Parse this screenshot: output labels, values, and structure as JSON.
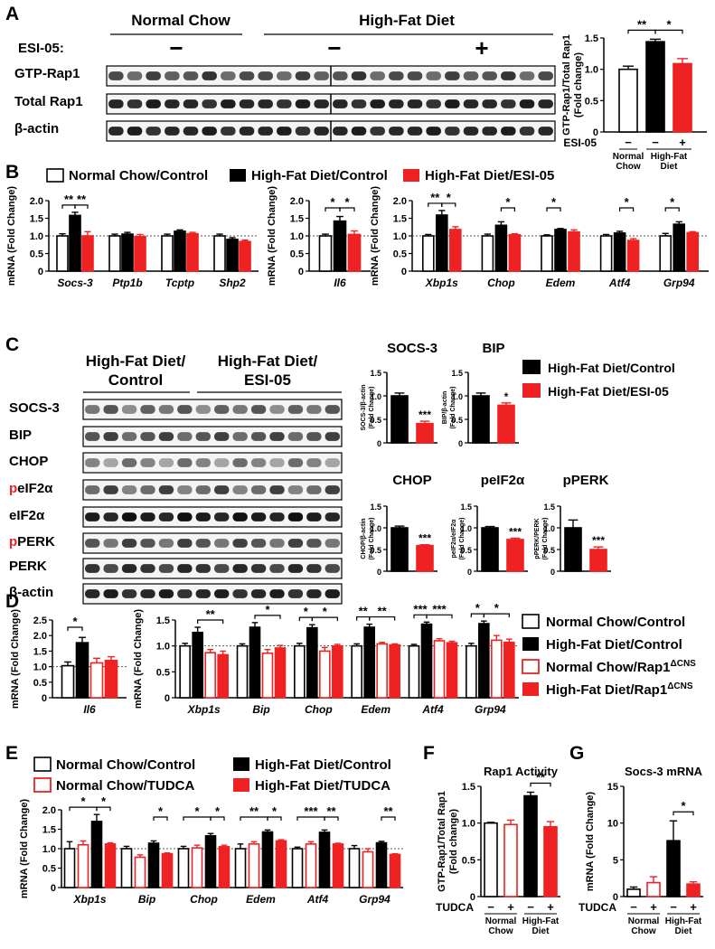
{
  "panel_labels": [
    "A",
    "B",
    "C",
    "D",
    "E",
    "F",
    "G"
  ],
  "colors": {
    "normal": "#ffffff",
    "hfd": "#000000",
    "treat": "#ee2222",
    "outline_red": "#ee2222"
  },
  "panel_a": {
    "header_nc": "Normal Chow",
    "header_hfd": "High-Fat Diet",
    "esi_label": "ESI-05:",
    "esi_signs": [
      "−",
      "−",
      "+"
    ],
    "blots": [
      "GTP-Rap1",
      "Total Rap1",
      "β-actin"
    ]
  },
  "panel_c": {
    "header_1a": "High-Fat Diet/",
    "header_1b": "Control",
    "header_2a": "High-Fat Diet/",
    "header_2b": "ESI-05",
    "blots": [
      "SOCS-3",
      "BIP",
      "CHOP",
      "peIF2α",
      "eIF2α",
      "pPERK",
      "PERK",
      "β-actin"
    ],
    "legend": [
      "High-Fat Diet/Control",
      "High-Fat Diet/ESI-05"
    ]
  },
  "legend_b": [
    "Normal Chow/Control",
    "High-Fat Diet/Control",
    "High-Fat Diet/ESI-05"
  ],
  "legend_d": [
    "Normal Chow/Control",
    "High-Fat Diet/Control",
    "Normal Chow/Rap1ΔCNS",
    "High-Fat Diet/Rap1ΔCNS"
  ],
  "legend_e": [
    "Normal Chow/Control",
    "High-Fat Diet/Control",
    "Normal Chow/TUDCA",
    "High-Fat Diet/TUDCA"
  ],
  "chart_data": [
    {
      "id": "A",
      "type": "bar",
      "ylabel": "GTP-Rap1/Total Rap1 (Fold change)",
      "ylim": [
        0,
        1.5
      ],
      "yticks": [
        0,
        0.5,
        1.0,
        1.5
      ],
      "treatment_label": "ESI-05",
      "treatment_signs": [
        "−",
        "−",
        "+"
      ],
      "group_labels": [
        "Normal Chow",
        "High-Fat Diet"
      ],
      "values": [
        1.0,
        1.44,
        1.09
      ],
      "errors": [
        0.05,
        0.04,
        0.08
      ],
      "fills": [
        "white",
        "black",
        "red"
      ],
      "sig": [
        {
          "from": 0,
          "to": 1,
          "label": "**"
        },
        {
          "from": 1,
          "to": 2,
          "label": "*"
        }
      ]
    },
    {
      "id": "B1",
      "type": "bar",
      "ylabel": "mRNA (Fold Change)",
      "ylim": [
        0,
        2.0
      ],
      "yticks": [
        0,
        0.5,
        1.0,
        1.5,
        2.0
      ],
      "categories": [
        "Socs-3",
        "Ptp1b",
        "Tcptp",
        "Shp2"
      ],
      "series": [
        {
          "name": "Normal Chow/Control",
          "values": [
            1.0,
            1.0,
            1.0,
            1.0
          ],
          "errors": [
            0.06,
            0.05,
            0.05,
            0.05
          ]
        },
        {
          "name": "High-Fat Diet/Control",
          "values": [
            1.58,
            1.05,
            1.13,
            0.9
          ],
          "errors": [
            0.09,
            0.05,
            0.04,
            0.05
          ]
        },
        {
          "name": "High-Fat Diet/ESI-05",
          "values": [
            1.0,
            0.98,
            1.06,
            0.84
          ],
          "errors": [
            0.12,
            0.06,
            0.04,
            0.04
          ]
        }
      ],
      "sig": [
        {
          "cat": 0,
          "from": 0,
          "to": 1,
          "label": "**"
        },
        {
          "cat": 0,
          "from": 1,
          "to": 2,
          "label": "**"
        }
      ]
    },
    {
      "id": "B2",
      "type": "bar",
      "ylabel": "mRNA (Fold Change)",
      "ylim": [
        0,
        2.0
      ],
      "yticks": [
        0,
        0.5,
        1.0,
        1.5,
        2.0
      ],
      "categories": [
        "Il6"
      ],
      "series": [
        {
          "name": "Normal Chow/Control",
          "values": [
            1.0
          ],
          "errors": [
            0.05
          ]
        },
        {
          "name": "High-Fat Diet/Control",
          "values": [
            1.42
          ],
          "errors": [
            0.13
          ]
        },
        {
          "name": "High-Fat Diet/ESI-05",
          "values": [
            1.04
          ],
          "errors": [
            0.1
          ]
        }
      ],
      "sig": [
        {
          "cat": 0,
          "from": 0,
          "to": 1,
          "label": "*"
        },
        {
          "cat": 0,
          "from": 1,
          "to": 2,
          "label": "*"
        }
      ]
    },
    {
      "id": "B3",
      "type": "bar",
      "ylabel": "mRNA (Fold Change)",
      "ylim": [
        0,
        2.0
      ],
      "yticks": [
        0,
        0.5,
        1.0,
        1.5,
        2.0
      ],
      "categories": [
        "Xbp1s",
        "Chop",
        "Edem",
        "Atf4",
        "Grp94"
      ],
      "series": [
        {
          "name": "Normal Chow/Control",
          "values": [
            1.0,
            1.0,
            1.0,
            1.0,
            1.0
          ],
          "errors": [
            0.04,
            0.05,
            0.03,
            0.04,
            0.07
          ]
        },
        {
          "name": "High-Fat Diet/Control",
          "values": [
            1.59,
            1.3,
            1.18,
            1.08,
            1.33
          ],
          "errors": [
            0.13,
            0.1,
            0.03,
            0.05,
            0.07
          ]
        },
        {
          "name": "High-Fat Diet/ESI-05",
          "values": [
            1.18,
            1.03,
            1.11,
            0.87,
            1.09
          ],
          "errors": [
            0.08,
            0.03,
            0.06,
            0.05,
            0.03
          ]
        }
      ],
      "sig": [
        {
          "cat": 0,
          "from": 0,
          "to": 1,
          "label": "**"
        },
        {
          "cat": 0,
          "from": 1,
          "to": 2,
          "label": "*"
        },
        {
          "cat": 1,
          "from": 1,
          "to": 2,
          "label": "*"
        },
        {
          "cat": 2,
          "from": 0,
          "to": 1,
          "label": "*"
        },
        {
          "cat": 3,
          "from": 1,
          "to": 2,
          "label": "*"
        },
        {
          "cat": 4,
          "from": 0,
          "to": 1,
          "label": "*"
        }
      ]
    },
    {
      "id": "C_SOCS3",
      "type": "bar",
      "title": "SOCS-3",
      "ylabel": "SOCS-3/β-actin (Fold Change)",
      "ylim": [
        0,
        1.5
      ],
      "yticks": [
        0,
        0.5,
        1.0,
        1.5
      ],
      "categories": [
        "High-Fat Diet/Control",
        "High-Fat Diet/ESI-05"
      ],
      "values": [
        1.0,
        0.41
      ],
      "errors": [
        0.06,
        0.05
      ],
      "sig": [
        {
          "bar": 1,
          "label": "***"
        }
      ]
    },
    {
      "id": "C_BIP",
      "type": "bar",
      "title": "BIP",
      "ylabel": "BIP/β-actin (Fold Change)",
      "ylim": [
        0,
        1.5
      ],
      "yticks": [
        0,
        0.5,
        1.0,
        1.5
      ],
      "categories": [
        "High-Fat Diet/Control",
        "High-Fat Diet/ESI-05"
      ],
      "values": [
        1.0,
        0.8
      ],
      "errors": [
        0.06,
        0.05
      ],
      "sig": [
        {
          "bar": 1,
          "label": "*"
        }
      ]
    },
    {
      "id": "C_CHOP",
      "type": "bar",
      "title": "CHOP",
      "ylabel": "CHOP/β-actin (Fold Change)",
      "ylim": [
        0,
        1.5
      ],
      "yticks": [
        0,
        0.5,
        1.0,
        1.5
      ],
      "categories": [
        "High-Fat Diet/Control",
        "High-Fat Diet/ESI-05"
      ],
      "values": [
        1.0,
        0.59
      ],
      "errors": [
        0.04,
        0.02
      ],
      "sig": [
        {
          "bar": 1,
          "label": "***"
        }
      ]
    },
    {
      "id": "C_peIF2a",
      "type": "bar",
      "title": "peIF2α",
      "ylabel": "peIF2α/eIF2α (Fold Change)",
      "ylim": [
        0,
        1.5
      ],
      "yticks": [
        0,
        0.5,
        1.0,
        1.5
      ],
      "categories": [
        "High-Fat Diet/Control",
        "High-Fat Diet/ESI-05"
      ],
      "values": [
        1.0,
        0.73
      ],
      "errors": [
        0.03,
        0.03
      ],
      "sig": [
        {
          "bar": 1,
          "label": "***"
        }
      ]
    },
    {
      "id": "C_pPERK",
      "type": "bar",
      "title": "pPERK",
      "ylabel": "pPERK/PERK (Fold Change)",
      "ylim": [
        0,
        1.5
      ],
      "yticks": [
        0,
        0.5,
        1.0,
        1.5
      ],
      "categories": [
        "High-Fat Diet/Control",
        "High-Fat Diet/ESI-05"
      ],
      "values": [
        1.0,
        0.5
      ],
      "errors": [
        0.18,
        0.06
      ],
      "sig": [
        {
          "bar": 1,
          "label": "***"
        }
      ]
    },
    {
      "id": "D1",
      "type": "bar",
      "ylabel": "mRNA (Fold Change)",
      "ylim": [
        0,
        2.5
      ],
      "yticks": [
        0,
        0.5,
        1.0,
        1.5,
        2.0,
        2.5
      ],
      "categories": [
        "Il6"
      ],
      "series": [
        {
          "name": "Normal Chow/Control",
          "values": [
            1.03
          ],
          "errors": [
            0.12
          ]
        },
        {
          "name": "High-Fat Diet/Control",
          "values": [
            1.77
          ],
          "errors": [
            0.17
          ]
        },
        {
          "name": "Normal Chow/Rap1ΔCNS",
          "values": [
            1.12
          ],
          "errors": [
            0.15
          ]
        },
        {
          "name": "High-Fat Diet/Rap1ΔCNS",
          "values": [
            1.2
          ],
          "errors": [
            0.12
          ]
        }
      ],
      "sig": [
        {
          "cat": 0,
          "from": 0,
          "to": 1,
          "label": "*"
        }
      ]
    },
    {
      "id": "D2",
      "type": "bar",
      "ylabel": "mRNA (Fold Change)",
      "ylim": [
        0,
        1.5
      ],
      "yticks": [
        0,
        0.5,
        1.0,
        1.5
      ],
      "categories": [
        "Xbp1s",
        "Bip",
        "Chop",
        "Edem",
        "Atf4",
        "Grp94"
      ],
      "series": [
        {
          "name": "Normal Chow/Control",
          "values": [
            1.0,
            1.0,
            1.0,
            1.0,
            1.0,
            1.0
          ],
          "errors": [
            0.05,
            0.04,
            0.05,
            0.04,
            0.03,
            0.05
          ]
        },
        {
          "name": "High-Fat Diet/Control",
          "values": [
            1.26,
            1.36,
            1.35,
            1.36,
            1.42,
            1.43
          ],
          "errors": [
            0.1,
            0.09,
            0.06,
            0.06,
            0.04,
            0.05
          ]
        },
        {
          "name": "Normal Chow/Rap1ΔCNS",
          "values": [
            0.87,
            0.86,
            0.9,
            1.04,
            1.1,
            1.11
          ],
          "errors": [
            0.06,
            0.07,
            0.07,
            0.03,
            0.04,
            0.09
          ]
        },
        {
          "name": "High-Fat Diet/Rap1ΔCNS",
          "values": [
            0.83,
            0.96,
            1.0,
            1.02,
            1.06,
            1.07
          ],
          "errors": [
            0.07,
            0.05,
            0.03,
            0.02,
            0.03,
            0.06
          ]
        }
      ],
      "sig": [
        {
          "cat": 0,
          "from": 1,
          "to": 3,
          "label": "**"
        },
        {
          "cat": 1,
          "from": 1,
          "to": 3,
          "label": "*"
        },
        {
          "cat": 2,
          "from": 0,
          "to": 1,
          "label": "*"
        },
        {
          "cat": 2,
          "from": 1,
          "to": 3,
          "label": "*"
        },
        {
          "cat": 3,
          "from": 0,
          "to": 1,
          "label": "**"
        },
        {
          "cat": 3,
          "from": 1,
          "to": 3,
          "label": "**"
        },
        {
          "cat": 4,
          "from": 0,
          "to": 1,
          "label": "***"
        },
        {
          "cat": 4,
          "from": 1,
          "to": 3,
          "label": "***"
        },
        {
          "cat": 5,
          "from": 0,
          "to": 1,
          "label": "*"
        },
        {
          "cat": 5,
          "from": 1,
          "to": 3,
          "label": "*"
        }
      ]
    },
    {
      "id": "E",
      "type": "bar",
      "ylabel": "mRNA (Fold Change)",
      "ylim": [
        0,
        2.0
      ],
      "yticks": [
        0,
        0.5,
        1.0,
        1.5,
        2.0
      ],
      "categories": [
        "Xbp1s",
        "Bip",
        "Chop",
        "Edem",
        "Atf4",
        "Grp94"
      ],
      "series": [
        {
          "name": "Normal Chow/Control",
          "values": [
            1.0,
            1.0,
            1.0,
            1.0,
            1.0,
            1.0
          ],
          "errors": [
            0.18,
            0.06,
            0.06,
            0.12,
            0.04,
            0.08
          ]
        },
        {
          "name": "Normal Chow/TUDCA",
          "values": [
            1.1,
            0.78,
            1.02,
            1.12,
            1.12,
            0.92
          ],
          "errors": [
            0.1,
            0.06,
            0.07,
            0.06,
            0.06,
            0.08
          ]
        },
        {
          "name": "High-Fat Diet/Control",
          "values": [
            1.7,
            1.14,
            1.33,
            1.43,
            1.42,
            1.15
          ],
          "errors": [
            0.18,
            0.06,
            0.06,
            0.05,
            0.06,
            0.04
          ]
        },
        {
          "name": "High-Fat Diet/TUDCA",
          "values": [
            1.12,
            0.87,
            1.05,
            1.2,
            1.12,
            0.85
          ],
          "errors": [
            0.03,
            0.02,
            0.04,
            0.03,
            0.02,
            0.02
          ]
        }
      ],
      "sig": [
        {
          "cat": 0,
          "from": 0,
          "to": 2,
          "label": "*"
        },
        {
          "cat": 0,
          "from": 2,
          "to": 3,
          "label": "*"
        },
        {
          "cat": 1,
          "from": 2,
          "to": 3,
          "label": "*"
        },
        {
          "cat": 2,
          "from": 0,
          "to": 2,
          "label": "*"
        },
        {
          "cat": 2,
          "from": 2,
          "to": 3,
          "label": "*"
        },
        {
          "cat": 3,
          "from": 0,
          "to": 2,
          "label": "**"
        },
        {
          "cat": 3,
          "from": 2,
          "to": 3,
          "label": "*"
        },
        {
          "cat": 4,
          "from": 0,
          "to": 2,
          "label": "***"
        },
        {
          "cat": 4,
          "from": 2,
          "to": 3,
          "label": "**"
        },
        {
          "cat": 5,
          "from": 2,
          "to": 3,
          "label": "**"
        }
      ]
    },
    {
      "id": "F",
      "type": "bar",
      "title": "Rap1 Activity",
      "ylabel": "GTP-Rap1/Total Rap1 (Fold change)",
      "ylim": [
        0,
        1.5
      ],
      "yticks": [
        0,
        0.5,
        1.0,
        1.5
      ],
      "treatment_label": "TUDCA",
      "treatment_signs": [
        "−",
        "+",
        "−",
        "+"
      ],
      "group_labels": [
        "Normal Chow",
        "High-Fat Diet"
      ],
      "values": [
        1.0,
        0.98,
        1.37,
        0.95
      ],
      "errors": [
        0.01,
        0.06,
        0.05,
        0.07
      ],
      "fills": [
        "white",
        "red-outline",
        "black",
        "red"
      ],
      "sig": [
        {
          "from": 2,
          "to": 3,
          "label": "**"
        }
      ]
    },
    {
      "id": "G",
      "type": "bar",
      "title": "Socs-3 mRNA",
      "ylabel": "mRNA (Fold Change)",
      "ylim": [
        0,
        15
      ],
      "yticks": [
        0,
        5,
        10,
        15
      ],
      "treatment_label": "TUDCA",
      "treatment_signs": [
        "−",
        "+",
        "−",
        "+"
      ],
      "group_labels": [
        "Normal Chow",
        "High-Fat Diet"
      ],
      "values": [
        1.0,
        1.9,
        7.6,
        1.7
      ],
      "errors": [
        0.3,
        0.8,
        2.7,
        0.3
      ],
      "fills": [
        "white",
        "red-outline",
        "black",
        "red"
      ],
      "sig": [
        {
          "from": 2,
          "to": 3,
          "label": "*"
        }
      ]
    }
  ]
}
